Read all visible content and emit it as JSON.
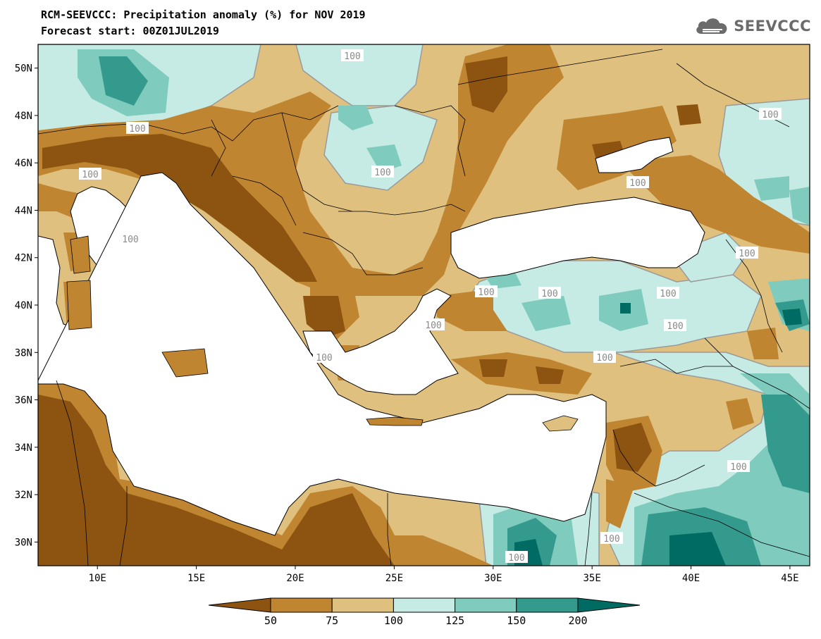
{
  "header": {
    "title": "RCM-SEEVCCC: Precipitation anomaly (%) for NOV 2019",
    "subtitle": "Forecast start: 00Z01JUL2019",
    "logo_text": "SEEVCCC"
  },
  "map": {
    "lon_range": [
      7,
      46
    ],
    "lat_range": [
      29,
      51
    ],
    "lat_ticks": [
      "30N",
      "32N",
      "34N",
      "36N",
      "38N",
      "40N",
      "42N",
      "44N",
      "46N",
      "48N",
      "50N"
    ],
    "lon_ticks": [
      "10E",
      "15E",
      "20E",
      "25E",
      "30E",
      "35E",
      "40E",
      "45E"
    ],
    "contour_labels": [
      "100",
      "100",
      "100",
      "100",
      "100",
      "100",
      "100",
      "100",
      "100",
      "100",
      "100",
      "100",
      "100",
      "100",
      "100",
      "100",
      "100",
      "100"
    ]
  },
  "colorbar": {
    "labels": [
      "50",
      "75",
      "100",
      "125",
      "150",
      "200"
    ],
    "colors": [
      "#8c5410",
      "#c08530",
      "#dfc07e",
      "#c6ebe5",
      "#7fcbbd",
      "#359a8e",
      "#006b63"
    ]
  },
  "colors": {
    "sea": "#ffffff",
    "land_dry": "#dfc07e",
    "land_wet": "#c6ebe5"
  }
}
